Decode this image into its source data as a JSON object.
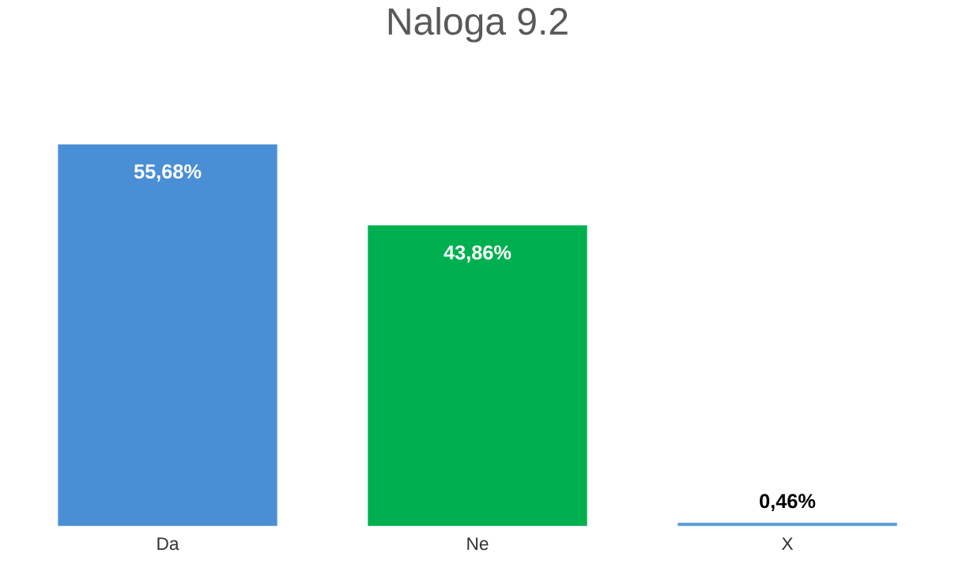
{
  "chart_data": {
    "type": "bar",
    "title": "Naloga 9.2",
    "categories": [
      "Da",
      "Ne",
      "X"
    ],
    "values": [
      55.68,
      43.86,
      0.46
    ],
    "colors": [
      "#4a8fd6",
      "#00b050",
      "#5b9bd5"
    ],
    "value_labels": [
      "55,68%",
      "43,86%",
      "0,46%"
    ]
  }
}
